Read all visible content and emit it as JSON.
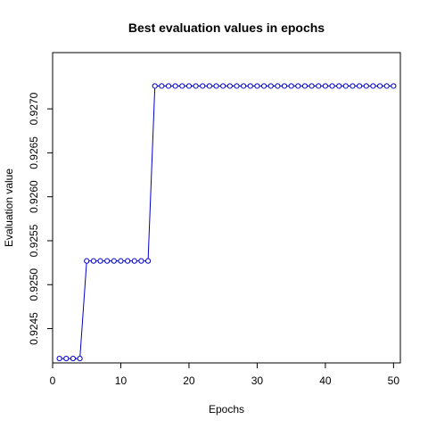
{
  "chart_data": {
    "type": "line",
    "title": "Best evaluation values in epochs",
    "xlabel": "Epochs",
    "ylabel": "Evaluation value",
    "xlim": [
      0,
      51
    ],
    "ylim": [
      0.92411,
      0.92764
    ],
    "x_ticks": [
      0,
      10,
      20,
      30,
      40,
      50
    ],
    "x_tick_labels": [
      "0",
      "10",
      "20",
      "30",
      "40",
      "50"
    ],
    "y_ticks": [
      0.9245,
      0.925,
      0.9255,
      0.926,
      0.9265,
      0.927
    ],
    "y_tick_labels": [
      "0.9245",
      "0.9250",
      "0.9255",
      "0.9260",
      "0.9265",
      "0.9270"
    ],
    "grid": false,
    "series": [
      {
        "color": "#0000cc",
        "x": [
          1,
          2,
          3,
          4,
          5,
          6,
          7,
          8,
          9,
          10,
          11,
          12,
          13,
          14,
          15,
          16,
          17,
          18,
          19,
          20,
          21,
          22,
          23,
          24,
          25,
          26,
          27,
          28,
          29,
          30,
          31,
          32,
          33,
          34,
          35,
          36,
          37,
          38,
          39,
          40,
          41,
          42,
          43,
          44,
          45,
          46,
          47,
          48,
          49,
          50
        ],
        "values": [
          0.92416,
          0.92416,
          0.92416,
          0.92416,
          0.92527,
          0.92527,
          0.92527,
          0.92527,
          0.92527,
          0.92527,
          0.92527,
          0.92527,
          0.92527,
          0.92527,
          0.92726,
          0.92726,
          0.92726,
          0.92726,
          0.92726,
          0.92726,
          0.92726,
          0.92726,
          0.92726,
          0.92726,
          0.92726,
          0.92726,
          0.92726,
          0.92726,
          0.92726,
          0.92726,
          0.92726,
          0.92726,
          0.92726,
          0.92726,
          0.92726,
          0.92726,
          0.92726,
          0.92726,
          0.92726,
          0.92726,
          0.92726,
          0.92726,
          0.92726,
          0.92726,
          0.92726,
          0.92726,
          0.92726,
          0.92726,
          0.92726,
          0.92726
        ]
      }
    ]
  }
}
